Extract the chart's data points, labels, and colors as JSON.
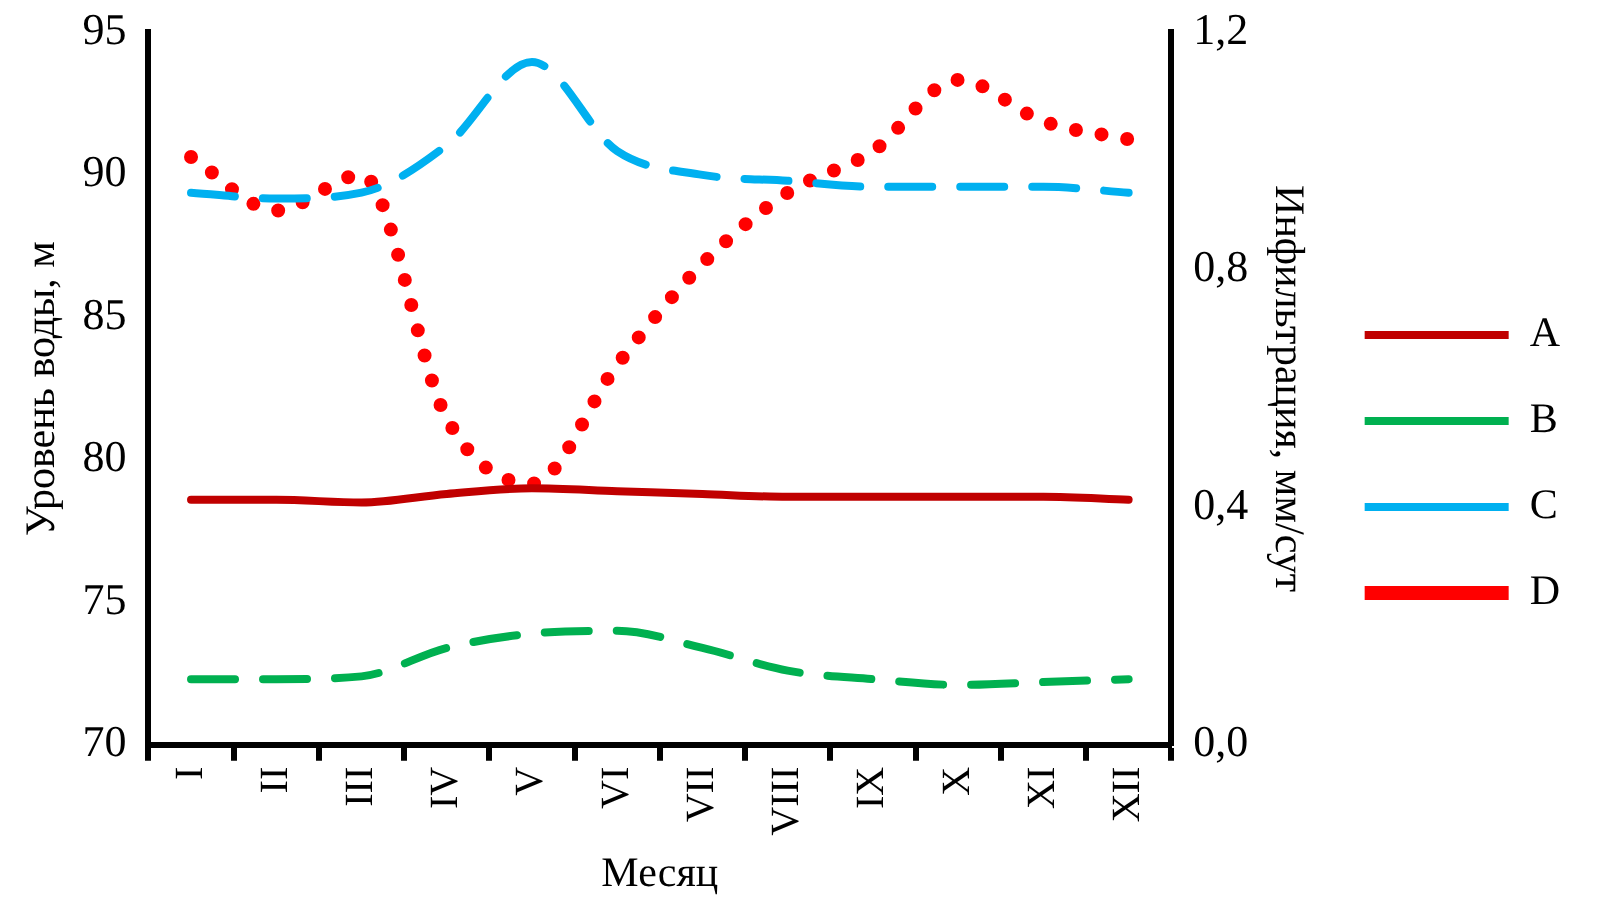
{
  "chart_data": {
    "type": "line",
    "xlabel": "Месяц",
    "ylabel": "Уровень воды, м",
    "y2label": "Инфильтрация, мм/сут",
    "categories": [
      "I",
      "II",
      "III",
      "IV",
      "V",
      "VI",
      "VII",
      "VIII",
      "IX",
      "X",
      "XI",
      "XII"
    ],
    "ylim": [
      70,
      95
    ],
    "yticks": [
      70,
      75,
      80,
      85,
      90,
      95
    ],
    "y2lim": [
      0,
      1.2
    ],
    "y2ticks": [
      {
        "value": 0,
        "label": "0,0"
      },
      {
        "value": 0.4,
        "label": "0,4"
      },
      {
        "value": 0.8,
        "label": "0,8"
      },
      {
        "value": 1.2,
        "label": "1,2"
      }
    ],
    "legend": "right",
    "grid": false,
    "marker": "none",
    "series": [
      {
        "name": "A",
        "color": "#c00000",
        "line_style": "solid",
        "values": [
          78.6,
          78.6,
          78.5,
          78.8,
          79.0,
          78.9,
          78.8,
          78.7,
          78.7,
          78.7,
          78.7,
          78.6
        ]
      },
      {
        "name": "B",
        "color": "#00b050",
        "line_style": "dashed",
        "values": [
          72.3,
          72.3,
          72.4,
          73.4,
          73.9,
          74.0,
          73.4,
          72.6,
          72.3,
          72.1,
          72.2,
          72.3
        ]
      },
      {
        "name": "C",
        "color": "#00b0f0",
        "line_style": "dashed",
        "axis": "y2",
        "values": [
          0.93,
          0.92,
          0.93,
          1.01,
          1.15,
          1.0,
          0.96,
          0.95,
          0.94,
          0.94,
          0.94,
          0.93
        ]
      },
      {
        "name": "D",
        "color": "#ff0000",
        "line_style": "dotted",
        "axis": "y2",
        "values": [
          0.99,
          0.9,
          0.96,
          0.55,
          0.44,
          0.64,
          0.81,
          0.93,
          1.0,
          1.12,
          1.05,
          1.02
        ]
      }
    ]
  }
}
